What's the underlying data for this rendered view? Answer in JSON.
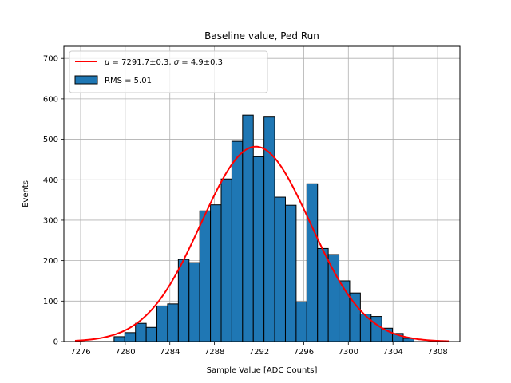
{
  "chart_data": {
    "type": "bar",
    "title": "Baseline value, Ped Run",
    "xlabel": "Sample Value [ADC Counts]",
    "ylabel": "Events",
    "xlim": [
      7274.5,
      7310.0
    ],
    "ylim": [
      0,
      730
    ],
    "xticks": [
      7276,
      7280,
      7284,
      7288,
      7292,
      7296,
      7300,
      7304,
      7308
    ],
    "yticks": [
      0,
      100,
      200,
      300,
      400,
      500,
      600,
      700
    ],
    "grid": true,
    "legend_position": "upper left",
    "colors": {
      "bars": "#1f77b4",
      "bar_edge": "#000000",
      "fit": "#ff0000",
      "grid": "#b0b0b0"
    },
    "bin_width": 0.96,
    "bin_edges_start": 7279.0,
    "bin_counts": [
      12,
      22,
      45,
      35,
      88,
      93,
      203,
      195,
      323,
      338,
      402,
      495,
      560,
      457,
      555,
      357,
      337,
      98,
      390,
      230,
      215,
      150,
      120,
      68,
      62,
      33,
      20,
      8
    ],
    "fit": {
      "type": "gaussian",
      "mu": 7291.7,
      "sigma": 4.9,
      "amplitude": 482,
      "x_range": [
        7275.5,
        7309.0
      ]
    },
    "legend": {
      "fit_label": {
        "mu_sym": "μ",
        "mu_text": " = 7291.7±0.3, ",
        "sigma_sym": "σ",
        "sigma_text": " = 4.9±0.3"
      },
      "hist_label": "RMS = 5.01"
    }
  }
}
